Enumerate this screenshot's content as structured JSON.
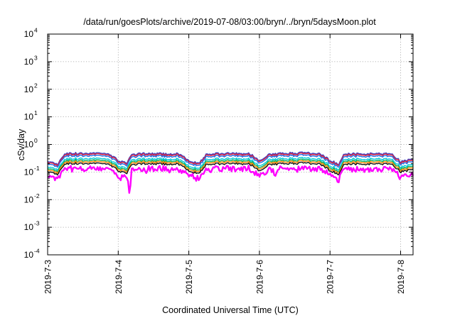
{
  "chart_data": {
    "type": "line",
    "title": "/data/run/goesPlots/archive/2019-07-08/03:00/bryn/../bryn/5daysMoon.plot",
    "xlabel": "Coordinated Universal Time (UTC)",
    "ylabel": "cSv/day",
    "y_scale": "log",
    "ylim": [
      0.0001,
      10000
    ],
    "y_ticks": [
      {
        "base": "10",
        "exp": "-4",
        "value": 0.0001
      },
      {
        "base": "10",
        "exp": "-3",
        "value": 0.001
      },
      {
        "base": "10",
        "exp": "-2",
        "value": 0.01
      },
      {
        "base": "10",
        "exp": "-1",
        "value": 0.1
      },
      {
        "base": "10",
        "exp": "0",
        "value": 1
      },
      {
        "base": "10",
        "exp": "1",
        "value": 10
      },
      {
        "base": "10",
        "exp": "2",
        "value": 100
      },
      {
        "base": "10",
        "exp": "3",
        "value": 1000
      },
      {
        "base": "10",
        "exp": "4",
        "value": 10000
      }
    ],
    "xlim": [
      "2019-07-03",
      "2019-07-08T03:00"
    ],
    "x_ticks": [
      {
        "label": "2019-7-3",
        "day": 0
      },
      {
        "label": "2019-7-4",
        "day": 1
      },
      {
        "label": "2019-7-5",
        "day": 2
      },
      {
        "label": "2019-7-6",
        "day": 3
      },
      {
        "label": "2019-7-7",
        "day": 4
      },
      {
        "label": "2019-7-8",
        "day": 5
      }
    ],
    "grid": true,
    "legend": "none",
    "series_colors": [
      "#ff00ff",
      "#111111",
      "#ff8800",
      "#00b060",
      "#00c8d8",
      "#1e6ee8",
      "#e0203c",
      "#4040c0"
    ],
    "series_levels": [
      0.16,
      0.2,
      0.23,
      0.26,
      0.3,
      0.38,
      0.43,
      0.47
    ],
    "profile": {
      "days": [
        0,
        0.15,
        0.25,
        0.55,
        0.85,
        1.0,
        1.13,
        1.2,
        1.3,
        1.55,
        1.85,
        2.0,
        2.15,
        2.25,
        2.55,
        2.85,
        3.0,
        3.15,
        3.3,
        3.6,
        3.85,
        4.0,
        4.13,
        4.2,
        4.3,
        4.55,
        4.85,
        5.0,
        5.13
      ],
      "factor": [
        0.5,
        0.42,
        1.0,
        1.05,
        1.0,
        0.55,
        0.45,
        0.95,
        1.0,
        0.98,
        1.0,
        0.55,
        0.42,
        0.95,
        1.02,
        1.0,
        0.55,
        0.95,
        1.0,
        1.05,
        1.0,
        0.55,
        0.42,
        0.95,
        1.0,
        0.98,
        1.0,
        0.5,
        0.6
      ]
    },
    "dips": [
      {
        "day": 0.07,
        "value": 0.07
      },
      {
        "day": 1.16,
        "value": 0.014
      },
      {
        "day": 1.4,
        "value": 0.09
      },
      {
        "day": 2.05,
        "value": 0.09
      },
      {
        "day": 2.9,
        "value": 0.1
      },
      {
        "day": 3.22,
        "value": 0.06
      },
      {
        "day": 4.0,
        "value": 0.09
      },
      {
        "day": 5.12,
        "value": 0.065
      }
    ]
  }
}
